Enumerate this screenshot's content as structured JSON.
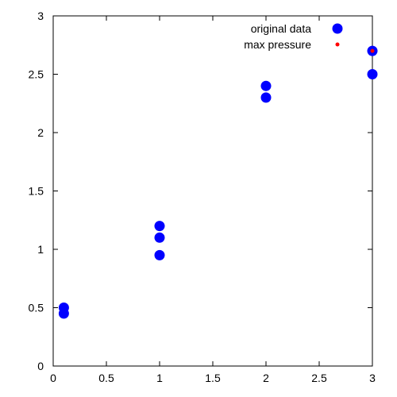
{
  "chart_data": {
    "type": "scatter",
    "title": "",
    "xlabel": "",
    "ylabel": "",
    "xlim": [
      0,
      3
    ],
    "ylim": [
      0,
      3
    ],
    "x_ticks": [
      "0",
      "0.5",
      "1",
      "1.5",
      "2",
      "2.5",
      "3"
    ],
    "y_ticks": [
      "0",
      "0.5",
      "1",
      "1.5",
      "2",
      "2.5",
      "3"
    ],
    "grid": false,
    "legend_position": "top-right",
    "series": [
      {
        "name": "original data",
        "color": "#0000ff",
        "marker": "large-dot",
        "x": [
          0.1,
          0.1,
          1,
          1,
          1,
          2,
          2,
          3,
          3
        ],
        "y": [
          0.5,
          0.45,
          1.2,
          1.1,
          0.95,
          2.4,
          2.3,
          2.7,
          2.5
        ]
      },
      {
        "name": "max pressure",
        "color": "#ff0000",
        "marker": "small-dot",
        "x": [
          3
        ],
        "y": [
          2.7
        ]
      }
    ]
  }
}
